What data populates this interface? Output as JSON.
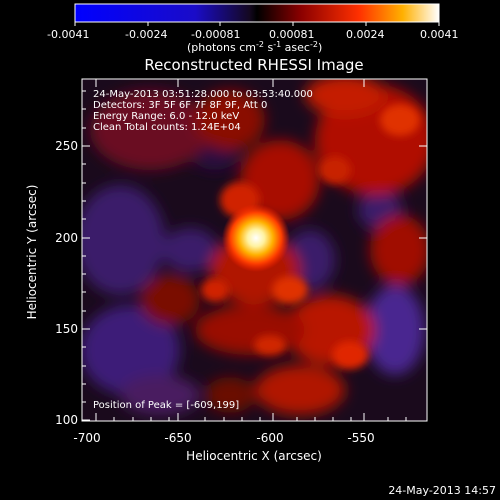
{
  "colorbar": {
    "tick_labels": [
      "-0.0041",
      "-0.0024",
      "-0.00081",
      "0.00081",
      "0.0024",
      "0.0041"
    ],
    "units_text": "(photons cm",
    "units_sup1": "-2",
    "units_mid": " s",
    "units_sup2": "-1",
    "units_mid2": " asec",
    "units_sup3": "-2",
    "units_end": ")"
  },
  "plot": {
    "title": "Reconstructed RHESSI Image",
    "annotations": [
      "24-May-2013 03:51:28.000 to 03:53:40.000",
      "Detectors: 3F 5F 6F 7F 8F 9F, Att 0",
      "Energy Range: 6.0 - 12.0 keV",
      "Clean     Total counts: 1.24E+04"
    ],
    "peak_label": "Position of Peak = [-609,199]",
    "xlabel": "Heliocentric X (arcsec)",
    "ylabel": "Heliocentric Y (arcsec)",
    "x_ticks": [
      "-700",
      "-650",
      "-600",
      "-550"
    ],
    "y_ticks": [
      "100",
      "150",
      "200",
      "250"
    ]
  },
  "footer": {
    "timestamp": "24-May-2013 14:57"
  }
}
